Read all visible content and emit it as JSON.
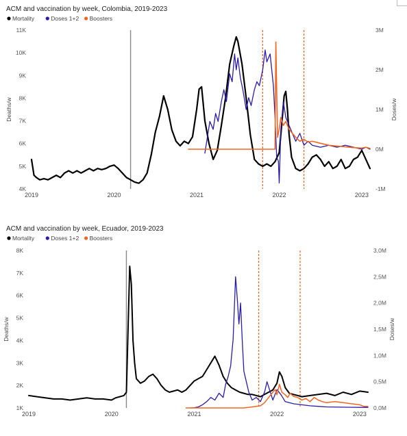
{
  "chart_data": [
    {
      "type": "line",
      "title": "ACM and vaccination by week, Colombia, 2019-2023",
      "legend": [
        "Mortality",
        "Doses 1+2",
        "Boosters"
      ],
      "legend_colors": [
        "#000000",
        "#2a1aa8",
        "#f26522"
      ],
      "legend_placement": "top-left",
      "xlabel": "",
      "ylabel": "Deaths/w",
      "y2label": "Doses/w",
      "x_ticks": [
        "2019",
        "2020",
        "2021",
        "2022",
        "2023"
      ],
      "xlim": [
        2019.0,
        2023.1
      ],
      "y_ticks": [
        "4K",
        "5K",
        "6K",
        "7K",
        "8K",
        "9K",
        "10K",
        "11K"
      ],
      "ylim": [
        4000,
        11000
      ],
      "y2_ticks": [
        "-1M",
        "0M",
        "1M",
        "2M",
        "3M"
      ],
      "y2lim": [
        -1000000,
        3000000
      ],
      "grid": false,
      "vlines": [
        {
          "x": 2020.2,
          "color": "#888888",
          "style": "solid"
        },
        {
          "x": 2021.8,
          "color": "#f26522",
          "style": "dashed"
        },
        {
          "x": 2022.3,
          "color": "#f26522",
          "style": "dashed"
        }
      ],
      "series": [
        {
          "name": "Mortality",
          "axis": "left",
          "color": "#000000",
          "width": 2.2,
          "x": [
            2019.0,
            2019.03,
            2019.06,
            2019.1,
            2019.15,
            2019.2,
            2019.25,
            2019.3,
            2019.35,
            2019.4,
            2019.45,
            2019.5,
            2019.55,
            2019.6,
            2019.65,
            2019.7,
            2019.75,
            2019.8,
            2019.85,
            2019.9,
            2019.95,
            2020.0,
            2020.05,
            2020.1,
            2020.15,
            2020.2,
            2020.25,
            2020.3,
            2020.35,
            2020.4,
            2020.45,
            2020.5,
            2020.55,
            2020.6,
            2020.65,
            2020.7,
            2020.75,
            2020.8,
            2020.85,
            2020.9,
            2020.95,
            2021.0,
            2021.03,
            2021.06,
            2021.1,
            2021.15,
            2021.2,
            2021.25,
            2021.3,
            2021.35,
            2021.4,
            2021.45,
            2021.48,
            2021.5,
            2021.55,
            2021.6,
            2021.65,
            2021.7,
            2021.75,
            2021.8,
            2021.85,
            2021.9,
            2021.95,
            2022.0,
            2022.03,
            2022.06,
            2022.08,
            2022.1,
            2022.12,
            2022.15,
            2022.2,
            2022.25,
            2022.3,
            2022.35,
            2022.4,
            2022.45,
            2022.5,
            2022.55,
            2022.6,
            2022.65,
            2022.7,
            2022.75,
            2022.8,
            2022.85,
            2022.9,
            2022.95,
            2023.0,
            2023.05,
            2023.1
          ],
          "y": [
            5300,
            4600,
            4500,
            4400,
            4450,
            4400,
            4500,
            4600,
            4500,
            4700,
            4800,
            4700,
            4800,
            4700,
            4800,
            4900,
            4800,
            4900,
            4850,
            4900,
            5000,
            5050,
            4900,
            4700,
            4500,
            4400,
            4300,
            4250,
            4400,
            4700,
            5500,
            6500,
            7200,
            8100,
            7500,
            6600,
            6100,
            5900,
            6100,
            6000,
            6300,
            7500,
            8400,
            8500,
            7000,
            6000,
            5300,
            5700,
            6800,
            8000,
            9500,
            10300,
            10700,
            10500,
            9500,
            8000,
            6400,
            5300,
            5100,
            5000,
            5100,
            5000,
            5200,
            5600,
            6800,
            8100,
            8300,
            7500,
            6400,
            5400,
            4900,
            4800,
            4900,
            5100,
            5400,
            5500,
            5300,
            5000,
            5200,
            4900,
            5000,
            5300,
            4900,
            5000,
            5300,
            5400,
            5700,
            5300,
            4900
          ]
        },
        {
          "name": "Doses 1+2",
          "axis": "right",
          "color": "#2a1aa8",
          "width": 1.3,
          "x": [
            2021.1,
            2021.13,
            2021.16,
            2021.2,
            2021.23,
            2021.26,
            2021.3,
            2021.33,
            2021.36,
            2021.4,
            2021.43,
            2021.46,
            2021.48,
            2021.5,
            2021.53,
            2021.56,
            2021.6,
            2021.63,
            2021.66,
            2021.7,
            2021.73,
            2021.76,
            2021.8,
            2021.83,
            2021.85,
            2021.87,
            2021.89,
            2021.91,
            2021.93,
            2021.95,
            2021.97,
            2021.99,
            2022.0,
            2022.02,
            2022.05,
            2022.08,
            2022.12,
            2022.16,
            2022.2,
            2022.25,
            2022.3,
            2022.35,
            2022.4,
            2022.5,
            2022.6,
            2022.7,
            2022.8,
            2022.9,
            2023.0,
            2023.05,
            2023.1
          ],
          "y": [
            -100000,
            300000,
            700000,
            500000,
            900000,
            700000,
            1200000,
            1500000,
            1200000,
            1900000,
            1700000,
            2400000,
            2000000,
            2300000,
            1800000,
            1500000,
            1000000,
            1300000,
            1100000,
            1500000,
            1700000,
            1600000,
            2000000,
            2500000,
            2200000,
            2300000,
            2400000,
            2000000,
            1600000,
            800000,
            -200000,
            -300000,
            -850000,
            500000,
            1200000,
            800000,
            600000,
            400000,
            200000,
            400000,
            100000,
            200000,
            100000,
            50000,
            100000,
            50000,
            100000,
            50000,
            0,
            50000,
            0
          ]
        },
        {
          "name": "Boosters",
          "axis": "right",
          "color": "#f26522",
          "width": 1.6,
          "x": [
            2020.9,
            2021.0,
            2021.2,
            2021.4,
            2021.6,
            2021.8,
            2021.95,
            2021.96,
            2021.97,
            2021.98,
            2022.0,
            2022.02,
            2022.05,
            2022.08,
            2022.12,
            2022.16,
            2022.2,
            2022.25,
            2022.3,
            2022.35,
            2022.4,
            2022.5,
            2022.6,
            2022.7,
            2022.8,
            2022.9,
            2023.0,
            2023.05,
            2023.1
          ],
          "y": [
            0,
            0,
            0,
            0,
            0,
            0,
            0,
            2700000,
            1500000,
            300000,
            500000,
            800000,
            600000,
            700000,
            500000,
            400000,
            300000,
            200000,
            250000,
            180000,
            200000,
            150000,
            100000,
            80000,
            60000,
            40000,
            30000,
            50000,
            20000
          ]
        }
      ]
    },
    {
      "type": "line",
      "title": "ACM and vaccination by week, Ecuador, 2019-2023",
      "legend": [
        "Mortality",
        "Doses 1+2",
        "Boosters"
      ],
      "legend_colors": [
        "#000000",
        "#2a1aa8",
        "#f26522"
      ],
      "legend_placement": "top-left",
      "xlabel": "",
      "ylabel": "Deaths/w",
      "y2label": "Doses/w",
      "x_ticks": [
        "2019",
        "2020",
        "2021",
        "2022",
        "2023"
      ],
      "xlim": [
        2019.0,
        2023.1
      ],
      "y_ticks": [
        "1K",
        "2K",
        "3K",
        "4K",
        "5K",
        "6K",
        "7K",
        "8K"
      ],
      "ylim": [
        1000,
        8000
      ],
      "y2_ticks": [
        "0,0M",
        "0,5M",
        "1,0M",
        "1,5M",
        "2,0M",
        "2,5M",
        "3,0M"
      ],
      "y2lim": [
        0,
        3000000
      ],
      "grid": false,
      "vlines": [
        {
          "x": 2020.18,
          "color": "#888888",
          "style": "solid"
        },
        {
          "x": 2021.78,
          "color": "#f26522",
          "style": "dashed"
        },
        {
          "x": 2022.28,
          "color": "#f26522",
          "style": "dashed"
        }
      ],
      "series": [
        {
          "name": "Mortality",
          "axis": "left",
          "color": "#000000",
          "width": 2.0,
          "x": [
            2019.0,
            2019.1,
            2019.2,
            2019.3,
            2019.4,
            2019.5,
            2019.6,
            2019.7,
            2019.8,
            2019.9,
            2020.0,
            2020.05,
            2020.1,
            2020.15,
            2020.18,
            2020.2,
            2020.22,
            2020.24,
            2020.26,
            2020.28,
            2020.3,
            2020.35,
            2020.4,
            2020.45,
            2020.5,
            2020.55,
            2020.6,
            2020.65,
            2020.7,
            2020.75,
            2020.8,
            2020.85,
            2020.9,
            2021.0,
            2021.05,
            2021.1,
            2021.15,
            2021.2,
            2021.25,
            2021.3,
            2021.35,
            2021.4,
            2021.45,
            2021.5,
            2021.55,
            2021.6,
            2021.65,
            2021.7,
            2021.75,
            2021.8,
            2021.85,
            2021.9,
            2021.95,
            2022.0,
            2022.03,
            2022.06,
            2022.1,
            2022.15,
            2022.2,
            2022.25,
            2022.3,
            2022.4,
            2022.5,
            2022.6,
            2022.7,
            2022.8,
            2022.9,
            2023.0,
            2023.1
          ],
          "y": [
            1550,
            1500,
            1450,
            1400,
            1400,
            1350,
            1400,
            1450,
            1400,
            1400,
            1350,
            1450,
            1500,
            1550,
            1700,
            4500,
            7300,
            6500,
            4000,
            3000,
            2300,
            2100,
            2200,
            2400,
            2500,
            2300,
            2000,
            1800,
            1700,
            1750,
            1800,
            1700,
            1800,
            2200,
            2300,
            2400,
            2700,
            3000,
            3300,
            2900,
            2400,
            2100,
            1900,
            1800,
            1700,
            1650,
            1600,
            1600,
            1550,
            1500,
            1600,
            1700,
            1800,
            2100,
            2600,
            2400,
            1900,
            1650,
            1600,
            1550,
            1500,
            1550,
            1600,
            1650,
            1550,
            1700,
            1600,
            1750,
            1700
          ]
        },
        {
          "name": "Doses 1+2",
          "axis": "right",
          "color": "#2a1aa8",
          "width": 1.3,
          "x": [
            2020.95,
            2021.0,
            2021.05,
            2021.1,
            2021.15,
            2021.2,
            2021.25,
            2021.3,
            2021.35,
            2021.38,
            2021.41,
            2021.44,
            2021.47,
            2021.5,
            2021.52,
            2021.54,
            2021.56,
            2021.58,
            2021.6,
            2021.63,
            2021.66,
            2021.7,
            2021.75,
            2021.8,
            2021.85,
            2021.88,
            2021.91,
            2021.95,
            2022.0,
            2022.05,
            2022.1,
            2022.2,
            2022.3,
            2022.4,
            2022.5,
            2022.6,
            2022.8,
            2023.0,
            2023.1
          ],
          "y": [
            0,
            5000,
            20000,
            60000,
            120000,
            200000,
            150000,
            280000,
            200000,
            450000,
            600000,
            800000,
            1300000,
            2500000,
            2100000,
            1600000,
            2000000,
            1300000,
            700000,
            500000,
            300000,
            150000,
            200000,
            120000,
            300000,
            500000,
            350000,
            150000,
            350000,
            250000,
            120000,
            80000,
            60000,
            40000,
            30000,
            20000,
            15000,
            10000,
            10000
          ]
        },
        {
          "name": "Boosters",
          "axis": "right",
          "color": "#f26522",
          "width": 1.5,
          "x": [
            2020.9,
            2021.0,
            2021.2,
            2021.4,
            2021.6,
            2021.7,
            2021.8,
            2021.85,
            2021.9,
            2021.95,
            2021.98,
            2022.0,
            2022.03,
            2022.06,
            2022.1,
            2022.13,
            2022.16,
            2022.2,
            2022.25,
            2022.3,
            2022.35,
            2022.4,
            2022.45,
            2022.5,
            2022.55,
            2022.6,
            2022.7,
            2022.8,
            2022.9,
            2023.0,
            2023.05,
            2023.1
          ],
          "y": [
            0,
            0,
            0,
            0,
            0,
            20000,
            40000,
            100000,
            200000,
            300000,
            350000,
            250000,
            450000,
            300000,
            250000,
            200000,
            280000,
            220000,
            200000,
            150000,
            180000,
            120000,
            200000,
            150000,
            120000,
            100000,
            120000,
            100000,
            80000,
            60000,
            30000,
            30000
          ]
        }
      ]
    }
  ]
}
